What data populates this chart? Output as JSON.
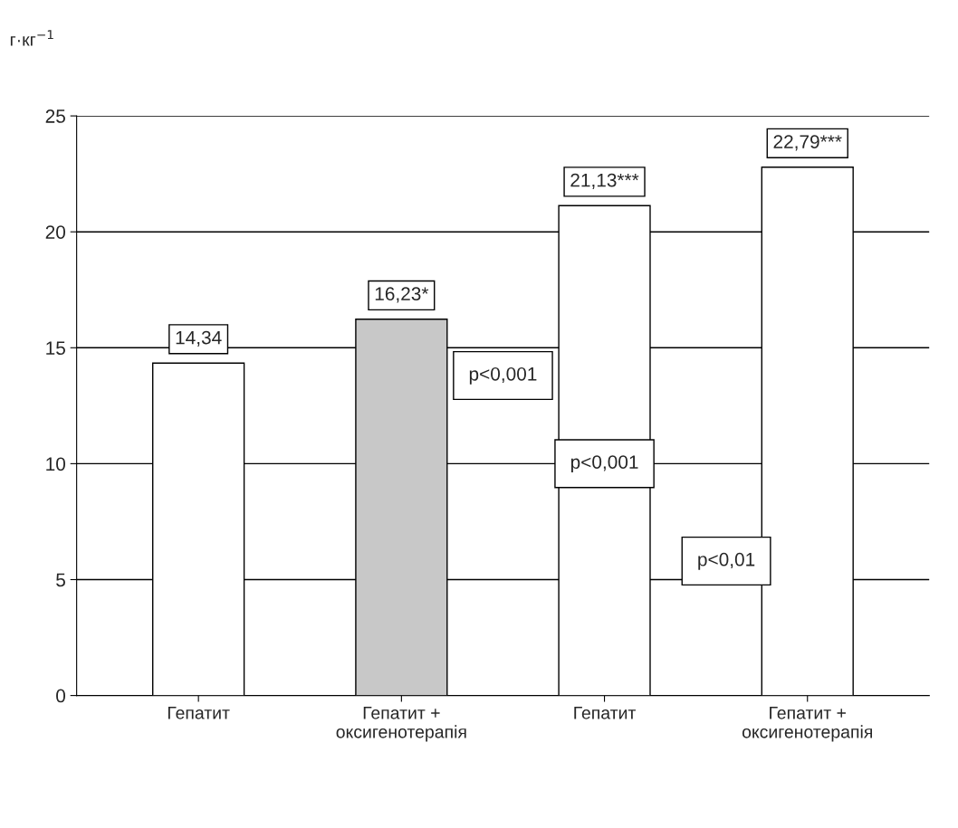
{
  "chart_data": {
    "type": "bar",
    "ylabel": "г·кг$^{−1}$",
    "categories": [
      "Гепатит",
      "Гепатит +\nоксигенотерапія",
      "Гепатит",
      "Гепатит +\nоксигенотерапія"
    ],
    "values": [
      14.34,
      16.23,
      21.13,
      22.79
    ],
    "colors": [
      "#ffffff",
      "#c8c8c8",
      "#ffffff",
      "#ffffff"
    ],
    "value_labels": [
      "14,34",
      "16,23*",
      "21,13***",
      "22,79***"
    ],
    "ylim": [
      0,
      25
    ],
    "yticks": [
      0,
      5,
      10,
      15,
      20,
      25
    ],
    "grid": "y",
    "annotations": [
      "p<0,001",
      "p<0,001",
      "p<0,01"
    ]
  }
}
